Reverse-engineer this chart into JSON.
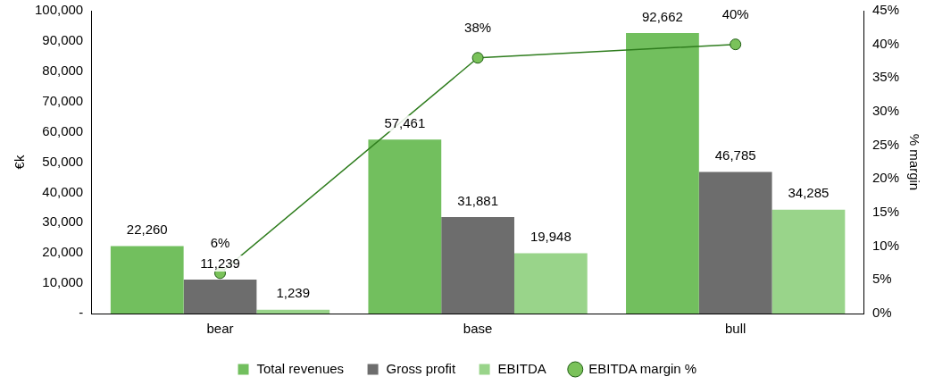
{
  "chart_data": {
    "type": "bar",
    "categories": [
      "bear",
      "base",
      "bull"
    ],
    "series": [
      {
        "name": "Total revenues",
        "color": "#72bf5e",
        "values": [
          22260,
          57461,
          92662
        ],
        "value_labels": [
          "22,260",
          "57,461",
          "92,662"
        ]
      },
      {
        "name": "Gross profit",
        "color": "#6d6d6d",
        "values": [
          11239,
          31881,
          46785
        ],
        "value_labels": [
          "11,239",
          "31,881",
          "46,785"
        ]
      },
      {
        "name": "EBITDA",
        "color": "#99d48a",
        "values": [
          1239,
          19948,
          34285
        ],
        "value_labels": [
          "1,239",
          "19,948",
          "34,285"
        ]
      },
      {
        "name": "EBITDA margin %",
        "type": "line",
        "axis": "y2",
        "color": "#2f7d1e",
        "marker": "circle",
        "values": [
          6,
          38,
          40
        ],
        "value_labels": [
          "6%",
          "38%",
          "40%"
        ]
      }
    ],
    "ylabel": "€k",
    "y2label": "% margin",
    "ylim": [
      0,
      100000
    ],
    "yticks": [
      {
        "value": 0,
        "label": "-"
      },
      {
        "value": 10000,
        "label": "10,000"
      },
      {
        "value": 20000,
        "label": "20,000"
      },
      {
        "value": 30000,
        "label": "30,000"
      },
      {
        "value": 40000,
        "label": "40,000"
      },
      {
        "value": 50000,
        "label": "50,000"
      },
      {
        "value": 60000,
        "label": "60,000"
      },
      {
        "value": 70000,
        "label": "70,000"
      },
      {
        "value": 80000,
        "label": "80,000"
      },
      {
        "value": 90000,
        "label": "90,000"
      },
      {
        "value": 100000,
        "label": "100,000"
      }
    ],
    "y2lim": [
      0,
      45
    ],
    "y2ticks": [
      {
        "value": 0,
        "label": "0%"
      },
      {
        "value": 5,
        "label": "5%"
      },
      {
        "value": 10,
        "label": "10%"
      },
      {
        "value": 15,
        "label": "15%"
      },
      {
        "value": 20,
        "label": "20%"
      },
      {
        "value": 25,
        "label": "25%"
      },
      {
        "value": 30,
        "label": "30%"
      },
      {
        "value": 35,
        "label": "35%"
      },
      {
        "value": 40,
        "label": "40%"
      },
      {
        "value": 45,
        "label": "45%"
      }
    ],
    "grid": false,
    "legend": "bottom"
  }
}
